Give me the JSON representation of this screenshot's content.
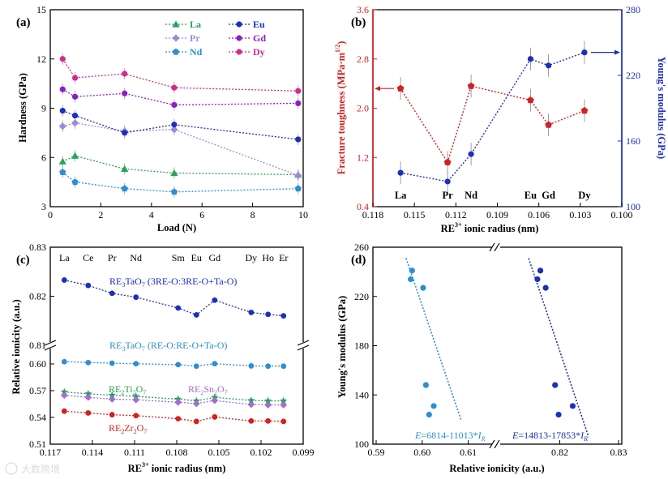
{
  "watermark": "大数跨境",
  "chart_data": [
    {
      "panel": "(a)",
      "type": "line",
      "xlabel": "Load (N)",
      "ylabel": "Hardness (GPa)",
      "xlim": [
        0,
        10
      ],
      "ylim": [
        3,
        15
      ],
      "xticks": [
        0,
        2,
        4,
        6,
        8,
        10
      ],
      "yticks": [
        3,
        6,
        9,
        12,
        15
      ],
      "x": [
        0.49,
        0.98,
        2.94,
        4.9,
        9.8
      ],
      "legend_position": "top-right",
      "series": [
        {
          "name": "La",
          "color": "#27a35a",
          "marker": "triangle",
          "values": [
            5.75,
            6.1,
            5.3,
            5.05,
            4.95
          ]
        },
        {
          "name": "Pr",
          "color": "#9a8bd8",
          "marker": "diamond",
          "values": [
            7.9,
            8.1,
            7.6,
            7.7,
            4.9
          ]
        },
        {
          "name": "Nd",
          "color": "#2b8fd6",
          "marker": "pentagon",
          "values": [
            5.1,
            4.5,
            4.1,
            3.9,
            4.1
          ]
        },
        {
          "name": "Eu",
          "color": "#1a2fc0",
          "marker": "circle",
          "values": [
            8.85,
            8.55,
            7.5,
            8.0,
            7.1
          ]
        },
        {
          "name": "Gd",
          "color": "#8b1fc4",
          "marker": "circle",
          "values": [
            10.15,
            9.7,
            9.9,
            9.2,
            9.3
          ]
        },
        {
          "name": "Dy",
          "color": "#d6288f",
          "marker": "circle",
          "values": [
            12.0,
            10.85,
            11.1,
            10.25,
            10.05
          ]
        }
      ]
    },
    {
      "panel": "(b)",
      "type": "line",
      "xlabel": "RE3+ ionic radius (nm)",
      "xlabel_main": "RE",
      "xlabel_sup": "3+",
      "xlabel_rest": " ionic radius (nm)",
      "ylabel_left_main": "Fracture toughness (MPa·m",
      "ylabel_left_sup": "1/2",
      "ylabel_left_close": ")",
      "ylabel_right": "Young's modulus (GPa)",
      "xlim": [
        0.118,
        0.1
      ],
      "ylim_left": [
        0.4,
        3.6
      ],
      "ylim_right": [
        100,
        280
      ],
      "xticks": [
        "0.118",
        "0.115",
        "0.112",
        "0.109",
        "0.106",
        "0.103",
        "0.100"
      ],
      "yticks_left": [
        "0.4",
        "1.2",
        "2.0",
        "2.8",
        "3.6"
      ],
      "yticks_right": [
        "100",
        "160",
        "220",
        "280"
      ],
      "categories": [
        "La",
        "Pr",
        "Nd",
        "Eu",
        "Gd",
        "Dy"
      ],
      "x": [
        0.116,
        0.1126,
        0.1109,
        0.1066,
        0.1053,
        0.1027
      ],
      "series": [
        {
          "name": "Fracture toughness",
          "color": "#d42020",
          "axis": "left",
          "values": [
            2.32,
            1.12,
            2.36,
            2.13,
            1.73,
            1.96
          ]
        },
        {
          "name": "Young's modulus",
          "color": "#1a2fc0",
          "axis": "right",
          "values": [
            131,
            123,
            148,
            235,
            229,
            241
          ]
        }
      ]
    },
    {
      "panel": "(c)",
      "type": "line",
      "xlabel_main": "RE",
      "xlabel_sup": "3+",
      "xlabel_rest": " ionic radius (nm)",
      "ylabel": "Relative ionicity (a.u.)",
      "xlim": [
        0.117,
        0.099
      ],
      "xticks": [
        "0.117",
        "0.114",
        "0.111",
        "0.108",
        "0.105",
        "0.102",
        "0.099"
      ],
      "ylim_upper": [
        0.81,
        0.83
      ],
      "ylim_lower": [
        0.51,
        0.61
      ],
      "yticks_upper": [
        "0.83",
        "0.82",
        "0.81"
      ],
      "yticks_lower": [
        "0.60",
        "0.57",
        "0.54",
        "0.51"
      ],
      "elements": [
        "La",
        "Ce",
        "Pr",
        "Nd",
        "Sm",
        "Eu",
        "Gd",
        "Dy",
        "Ho",
        "Er"
      ],
      "x": [
        0.116,
        0.1143,
        0.1126,
        0.1109,
        0.1079,
        0.1066,
        0.1053,
        0.1027,
        0.1015,
        0.1004
      ],
      "series": [
        {
          "name": "RE3TaO7 (3RE-O:3RE-O+Ta-O)",
          "color": "#1a2fc0",
          "values": [
            0.8233,
            0.8222,
            0.8206,
            0.8198,
            0.8176,
            0.8162,
            0.8192,
            0.8167,
            0.8163,
            0.816
          ]
        },
        {
          "name": "RE3TaO7 (RE-O:RE-O+Ta-O)",
          "color": "#2b8fd6",
          "values": [
            0.6025,
            0.6015,
            0.6008,
            0.6002,
            0.5992,
            0.5975,
            0.6002,
            0.5978,
            0.5975,
            0.5975
          ]
        },
        {
          "name": "RE2Ti2O7",
          "color": "#27a35a",
          "values": [
            0.5685,
            0.5665,
            0.5648,
            0.5635,
            0.5605,
            0.5585,
            0.5625,
            0.559,
            0.5585,
            0.5585
          ]
        },
        {
          "name": "RE2Sn2O7",
          "color": "#a56bd8",
          "values": [
            0.5648,
            0.5625,
            0.5605,
            0.5598,
            0.557,
            0.5555,
            0.559,
            0.5545,
            0.554,
            0.554
          ]
        },
        {
          "name": "RE2Zr2O7",
          "color": "#d42020",
          "values": [
            0.547,
            0.545,
            0.543,
            0.542,
            0.5385,
            0.5355,
            0.5405,
            0.536,
            0.536,
            0.5355
          ]
        }
      ],
      "labels": {
        "s1": {
          "pre": "RE",
          "sub1": "3",
          "mid": "TaO",
          "sub2": "7",
          "post": " (3RE-O:3RE-O+Ta-O)"
        },
        "s2": {
          "pre": "RE",
          "sub1": "3",
          "mid": "TaO",
          "sub2": "7",
          "post": " (RE-O:RE-O+Ta-O)"
        },
        "s3": {
          "pre": "RE",
          "sub1": "2",
          "mid": "Ti",
          "sub2": "2",
          "mid2": "O",
          "sub3": "7"
        },
        "s4": {
          "pre": "RE",
          "sub1": "2",
          "mid": "Sn",
          "sub2": "2",
          "mid2": "O",
          "sub3": "7"
        },
        "s5": {
          "pre": "RE",
          "sub1": "2",
          "mid": "Zr",
          "sub2": "2",
          "mid2": "O",
          "sub3": "7"
        }
      }
    },
    {
      "panel": "(d)",
      "type": "scatter",
      "xlabel": "Relative ionicity (a.u.)",
      "ylabel": "Young's modulus (GPa)",
      "ylim": [
        100,
        260
      ],
      "yticks": [
        "100",
        "140",
        "180",
        "220",
        "260"
      ],
      "xticks_left": [
        "0.59",
        "0.60",
        "0.61"
      ],
      "xticks_right": [
        "0.82",
        "0.83"
      ],
      "xlim_left": [
        0.59,
        0.615
      ],
      "xlim_right": [
        0.81,
        0.83
      ],
      "series": [
        {
          "name": "RE-O:RE-O+Ta-O",
          "color": "#2b8fd6",
          "x": [
            0.5975,
            0.5978,
            0.6002,
            0.6008,
            0.6015,
            0.6025
          ],
          "y": [
            234,
            241,
            227,
            148,
            124,
            131
          ],
          "fit": {
            "label_pre": "E",
            "label_eq": "=6814-11013*",
            "label_var": "I",
            "label_sub": "R",
            "x": [
              0.5965,
              0.6085
            ],
            "y": [
              251,
              119
            ]
          }
        },
        {
          "name": "3RE-O:3RE-O+Ta-O",
          "color": "#1a2fc0",
          "x": [
            0.8162,
            0.8167,
            0.8176,
            0.8192,
            0.8198,
            0.8222
          ],
          "y": [
            234,
            241,
            227,
            148,
            124,
            131
          ],
          "fit": {
            "label_pre": "E",
            "label_eq": "=14813-17853*",
            "label_var": "I",
            "label_sub": "R",
            "x": [
              0.8147,
              0.8249
            ],
            "y": [
              251,
              106
            ]
          }
        }
      ]
    }
  ]
}
